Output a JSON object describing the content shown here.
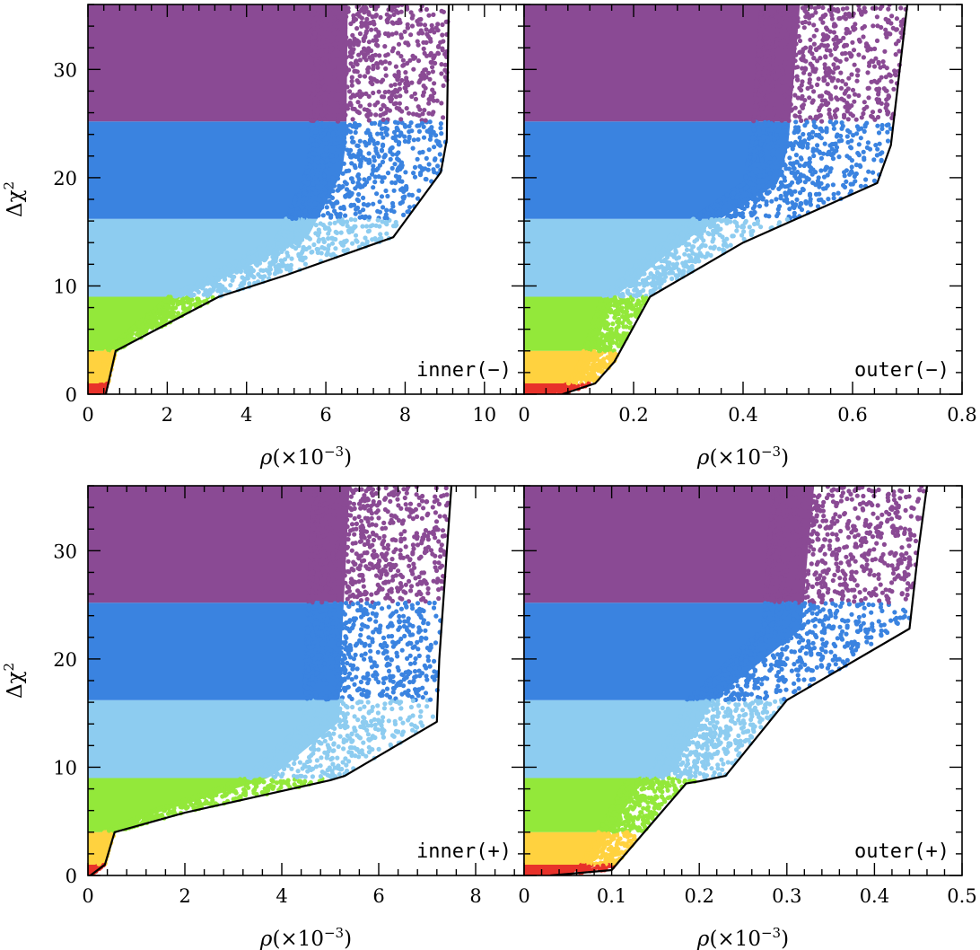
{
  "colors": {
    "red": "#e8322a",
    "yellow": "#ffd23f",
    "green": "#93e83a",
    "light_blue": "#8dccf0",
    "blue": "#3a83e0",
    "purple": "#8a4a94",
    "line": "#000000"
  },
  "chart_data": [
    {
      "type": "scatter",
      "panel": "inner(-)",
      "label": "inner(−)",
      "xlabel_symbol": "ρ",
      "xlabel_unit": "(×10",
      "xlabel_exp": "−3",
      "xlabel_close": ")",
      "ylabel_delta": "Δχ",
      "ylabel_exp": "2",
      "xlim": [
        0,
        11
      ],
      "ylim": [
        0,
        36
      ],
      "xticks": [
        0,
        2,
        4,
        6,
        8,
        10
      ],
      "xtick_labels": [
        "0",
        "2",
        "4",
        "6",
        "8",
        "10"
      ],
      "yticks": [
        0,
        10,
        20,
        30
      ],
      "ytick_labels": [
        "0",
        "10",
        "20",
        "30"
      ],
      "boundary_x": [
        0.45,
        0.7,
        2.0,
        3.3,
        5.0,
        7.7,
        8.9,
        9.05,
        9.1
      ],
      "boundary_y": [
        0,
        4,
        6.5,
        9,
        11,
        14.5,
        20.5,
        23.5,
        36
      ],
      "bands": [
        {
          "name": "red",
          "ymin": 0,
          "ymax": 1,
          "color": "#e8322a"
        },
        {
          "name": "yellow",
          "ymin": 1,
          "ymax": 4,
          "color": "#ffd23f"
        },
        {
          "name": "green",
          "ymin": 4,
          "ymax": 9,
          "color": "#93e83a"
        },
        {
          "name": "light_blue",
          "ymin": 9,
          "ymax": 16.2,
          "color": "#8dccf0"
        },
        {
          "name": "blue",
          "ymin": 16.2,
          "ymax": 25.2,
          "color": "#3a83e0"
        },
        {
          "name": "purple",
          "ymin": 25.2,
          "ymax": 36,
          "color": "#8a4a94"
        }
      ]
    },
    {
      "type": "scatter",
      "panel": "outer(-)",
      "label": "outer(−)",
      "xlabel_symbol": "ρ",
      "xlabel_unit": "(×10",
      "xlabel_exp": "−3",
      "xlabel_close": ")",
      "ylabel_delta": "",
      "ylabel_exp": "",
      "xlim": [
        0,
        0.8
      ],
      "ylim": [
        0,
        36
      ],
      "xticks": [
        0,
        0.2,
        0.4,
        0.6,
        0.8
      ],
      "xtick_labels": [
        "0",
        "0.2",
        "0.4",
        "0.6",
        "0.8"
      ],
      "yticks": [
        0,
        10,
        20,
        30
      ],
      "ytick_labels": [
        "",
        "",
        "",
        ""
      ],
      "boundary_x": [
        0.07,
        0.13,
        0.165,
        0.23,
        0.4,
        0.645,
        0.67,
        0.7
      ],
      "boundary_y": [
        0,
        1,
        3,
        9,
        14,
        19.5,
        23,
        36
      ],
      "bands": [
        {
          "name": "red",
          "ymin": 0,
          "ymax": 1,
          "color": "#e8322a"
        },
        {
          "name": "yellow",
          "ymin": 1,
          "ymax": 4,
          "color": "#ffd23f"
        },
        {
          "name": "green",
          "ymin": 4,
          "ymax": 9,
          "color": "#93e83a"
        },
        {
          "name": "light_blue",
          "ymin": 9,
          "ymax": 16.2,
          "color": "#8dccf0"
        },
        {
          "name": "blue",
          "ymin": 16.2,
          "ymax": 25.2,
          "color": "#3a83e0"
        },
        {
          "name": "purple",
          "ymin": 25.2,
          "ymax": 36,
          "color": "#8a4a94"
        }
      ]
    },
    {
      "type": "scatter",
      "panel": "inner(+)",
      "label": "inner(+)",
      "xlabel_symbol": "ρ",
      "xlabel_unit": "(×10",
      "xlabel_exp": "−3",
      "xlabel_close": ")",
      "ylabel_delta": "Δχ",
      "ylabel_exp": "2",
      "xlim": [
        0,
        9
      ],
      "ylim": [
        0,
        36
      ],
      "xticks": [
        0,
        2,
        4,
        6,
        8
      ],
      "xtick_labels": [
        "0",
        "2",
        "4",
        "6",
        "8"
      ],
      "yticks": [
        0,
        10,
        20,
        30
      ],
      "ytick_labels": [
        "0",
        "10",
        "20",
        "30"
      ],
      "boundary_x": [
        0.05,
        0.35,
        0.55,
        2.0,
        5.0,
        5.3,
        7.2,
        7.25,
        7.5
      ],
      "boundary_y": [
        0,
        1,
        4,
        5.8,
        8.8,
        9.2,
        14.2,
        20,
        36
      ],
      "bands": [
        {
          "name": "red",
          "ymin": 0,
          "ymax": 1,
          "color": "#e8322a"
        },
        {
          "name": "yellow",
          "ymin": 1,
          "ymax": 4,
          "color": "#ffd23f"
        },
        {
          "name": "green",
          "ymin": 4,
          "ymax": 9,
          "color": "#93e83a"
        },
        {
          "name": "light_blue",
          "ymin": 9,
          "ymax": 16.2,
          "color": "#8dccf0"
        },
        {
          "name": "blue",
          "ymin": 16.2,
          "ymax": 25.2,
          "color": "#3a83e0"
        },
        {
          "name": "purple",
          "ymin": 25.2,
          "ymax": 36,
          "color": "#8a4a94"
        }
      ]
    },
    {
      "type": "scatter",
      "panel": "outer(+)",
      "label": "outer(+)",
      "xlabel_symbol": "ρ",
      "xlabel_unit": "(×10",
      "xlabel_exp": "−3",
      "xlabel_close": ")",
      "ylabel_delta": "",
      "ylabel_exp": "",
      "xlim": [
        0,
        0.5
      ],
      "ylim": [
        0,
        36
      ],
      "xticks": [
        0,
        0.1,
        0.2,
        0.3,
        0.4,
        0.5
      ],
      "xtick_labels": [
        "0",
        "0.1",
        "0.2",
        "0.3",
        "0.4",
        "0.5"
      ],
      "yticks": [
        0,
        10,
        20,
        30
      ],
      "ytick_labels": [
        "",
        "",
        "",
        ""
      ],
      "boundary_x": [
        0.03,
        0.1,
        0.185,
        0.2,
        0.23,
        0.3,
        0.44,
        0.45,
        0.46
      ],
      "boundary_y": [
        0,
        0.5,
        8.5,
        8.7,
        9.2,
        16.2,
        22.8,
        30,
        36
      ],
      "bands": [
        {
          "name": "red",
          "ymin": 0,
          "ymax": 1,
          "color": "#e8322a"
        },
        {
          "name": "yellow",
          "ymin": 1,
          "ymax": 4,
          "color": "#ffd23f"
        },
        {
          "name": "green",
          "ymin": 4,
          "ymax": 9,
          "color": "#93e83a"
        },
        {
          "name": "light_blue",
          "ymin": 9,
          "ymax": 16.2,
          "color": "#8dccf0"
        },
        {
          "name": "blue",
          "ymin": 16.2,
          "ymax": 25.2,
          "color": "#3a83e0"
        },
        {
          "name": "purple",
          "ymin": 25.2,
          "ymax": 36,
          "color": "#8a4a94"
        }
      ]
    }
  ]
}
